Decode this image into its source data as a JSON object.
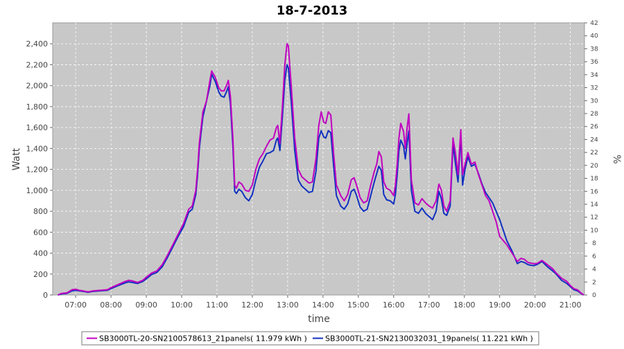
{
  "chart_data": {
    "type": "line",
    "title": "18-7-2013",
    "xlabel": "time",
    "ylabel": "Watt",
    "y2label": "%",
    "x_ticks": [
      "07:00",
      "08:00",
      "09:00",
      "10:00",
      "11:00",
      "12:00",
      "13:00",
      "14:00",
      "15:00",
      "16:00",
      "17:00",
      "18:00",
      "19:00",
      "20:00",
      "21:00"
    ],
    "xlim": [
      6.35,
      21.4
    ],
    "ylim": [
      0,
      2600
    ],
    "y_ticks": [
      0,
      200,
      400,
      600,
      800,
      1000,
      1200,
      1400,
      1600,
      1800,
      2000,
      2200,
      2400
    ],
    "y_tick_labels": [
      "0",
      "200",
      "400",
      "600",
      "800",
      "1,000",
      "1,200",
      "1,400",
      "1,600",
      "1,800",
      "2,000",
      "2,200",
      "2,400"
    ],
    "y2lim": [
      0,
      42
    ],
    "y2_ticks": [
      "0",
      "2",
      "4",
      "6",
      "8",
      "10",
      "12",
      "14",
      "16",
      "18",
      "20",
      "22",
      "24",
      "26",
      "28",
      "30",
      "32",
      "34",
      "36",
      "38",
      "40",
      "42"
    ],
    "grid": true,
    "background": "#c8c8c8",
    "legend_position": "bottom",
    "series": [
      {
        "name": "SB3000TL-20-SN2100578613_21panels( 11.979 kWh )",
        "color": "#c000c0",
        "points": [
          [
            6.5,
            0
          ],
          [
            6.6,
            15
          ],
          [
            6.75,
            20
          ],
          [
            6.9,
            50
          ],
          [
            7.0,
            55
          ],
          [
            7.1,
            45
          ],
          [
            7.2,
            40
          ],
          [
            7.35,
            30
          ],
          [
            7.5,
            40
          ],
          [
            7.7,
            45
          ],
          [
            7.9,
            50
          ],
          [
            8.0,
            70
          ],
          [
            8.2,
            100
          ],
          [
            8.4,
            130
          ],
          [
            8.5,
            140
          ],
          [
            8.6,
            135
          ],
          [
            8.75,
            120
          ],
          [
            8.9,
            140
          ],
          [
            9.0,
            170
          ],
          [
            9.15,
            210
          ],
          [
            9.3,
            230
          ],
          [
            9.45,
            290
          ],
          [
            9.6,
            380
          ],
          [
            9.75,
            480
          ],
          [
            9.9,
            580
          ],
          [
            10.05,
            680
          ],
          [
            10.2,
            820
          ],
          [
            10.3,
            850
          ],
          [
            10.4,
            1000
          ],
          [
            10.45,
            1200
          ],
          [
            10.5,
            1450
          ],
          [
            10.6,
            1750
          ],
          [
            10.7,
            1850
          ],
          [
            10.8,
            2050
          ],
          [
            10.85,
            2140
          ],
          [
            10.95,
            2080
          ],
          [
            11.05,
            1980
          ],
          [
            11.12,
            1950
          ],
          [
            11.2,
            1950
          ],
          [
            11.28,
            2010
          ],
          [
            11.32,
            2050
          ],
          [
            11.38,
            1900
          ],
          [
            11.45,
            1500
          ],
          [
            11.5,
            1050
          ],
          [
            11.55,
            1020
          ],
          [
            11.62,
            1080
          ],
          [
            11.7,
            1060
          ],
          [
            11.8,
            1000
          ],
          [
            11.9,
            990
          ],
          [
            12.0,
            1050
          ],
          [
            12.1,
            1200
          ],
          [
            12.2,
            1300
          ],
          [
            12.3,
            1350
          ],
          [
            12.4,
            1420
          ],
          [
            12.5,
            1480
          ],
          [
            12.6,
            1500
          ],
          [
            12.68,
            1600
          ],
          [
            12.72,
            1620
          ],
          [
            12.78,
            1450
          ],
          [
            12.85,
            1800
          ],
          [
            12.92,
            2200
          ],
          [
            12.98,
            2400
          ],
          [
            13.02,
            2380
          ],
          [
            13.1,
            2000
          ],
          [
            13.2,
            1500
          ],
          [
            13.3,
            1200
          ],
          [
            13.4,
            1130
          ],
          [
            13.5,
            1100
          ],
          [
            13.6,
            1070
          ],
          [
            13.7,
            1080
          ],
          [
            13.8,
            1300
          ],
          [
            13.88,
            1620
          ],
          [
            13.95,
            1750
          ],
          [
            14.02,
            1650
          ],
          [
            14.08,
            1640
          ],
          [
            14.15,
            1750
          ],
          [
            14.22,
            1720
          ],
          [
            14.3,
            1350
          ],
          [
            14.38,
            1050
          ],
          [
            14.5,
            950
          ],
          [
            14.6,
            900
          ],
          [
            14.7,
            960
          ],
          [
            14.8,
            1100
          ],
          [
            14.88,
            1120
          ],
          [
            14.95,
            1050
          ],
          [
            15.05,
            930
          ],
          [
            15.15,
            880
          ],
          [
            15.25,
            900
          ],
          [
            15.35,
            1050
          ],
          [
            15.45,
            1180
          ],
          [
            15.52,
            1250
          ],
          [
            15.58,
            1370
          ],
          [
            15.65,
            1320
          ],
          [
            15.72,
            1080
          ],
          [
            15.8,
            1020
          ],
          [
            15.9,
            1000
          ],
          [
            16.0,
            950
          ],
          [
            16.05,
            1050
          ],
          [
            16.1,
            1250
          ],
          [
            16.15,
            1500
          ],
          [
            16.2,
            1640
          ],
          [
            16.28,
            1560
          ],
          [
            16.33,
            1400
          ],
          [
            16.38,
            1600
          ],
          [
            16.43,
            1730
          ],
          [
            16.5,
            1100
          ],
          [
            16.6,
            880
          ],
          [
            16.7,
            860
          ],
          [
            16.8,
            920
          ],
          [
            16.9,
            880
          ],
          [
            17.0,
            850
          ],
          [
            17.1,
            830
          ],
          [
            17.2,
            900
          ],
          [
            17.28,
            1060
          ],
          [
            17.35,
            1000
          ],
          [
            17.42,
            850
          ],
          [
            17.5,
            800
          ],
          [
            17.6,
            900
          ],
          [
            17.68,
            1500
          ],
          [
            17.75,
            1350
          ],
          [
            17.82,
            1150
          ],
          [
            17.9,
            1580
          ],
          [
            17.95,
            1150
          ],
          [
            18.02,
            1250
          ],
          [
            18.1,
            1360
          ],
          [
            18.2,
            1250
          ],
          [
            18.3,
            1270
          ],
          [
            18.4,
            1150
          ],
          [
            18.5,
            1050
          ],
          [
            18.6,
            950
          ],
          [
            18.7,
            900
          ],
          [
            18.8,
            800
          ],
          [
            18.9,
            700
          ],
          [
            19.0,
            560
          ],
          [
            19.1,
            520
          ],
          [
            19.2,
            480
          ],
          [
            19.35,
            400
          ],
          [
            19.5,
            320
          ],
          [
            19.6,
            350
          ],
          [
            19.7,
            340
          ],
          [
            19.8,
            310
          ],
          [
            19.95,
            300
          ],
          [
            20.05,
            300
          ],
          [
            20.2,
            330
          ],
          [
            20.35,
            290
          ],
          [
            20.5,
            250
          ],
          [
            20.6,
            210
          ],
          [
            20.75,
            160
          ],
          [
            20.9,
            130
          ],
          [
            21.0,
            90
          ],
          [
            21.1,
            60
          ],
          [
            21.2,
            50
          ],
          [
            21.3,
            20
          ],
          [
            21.38,
            0
          ]
        ]
      },
      {
        "name": "SB3000TL-21-SN2130032031_19panels( 11.221 kWh )",
        "color": "#1030c0",
        "points": [
          [
            6.5,
            0
          ],
          [
            6.6,
            10
          ],
          [
            6.75,
            15
          ],
          [
            6.9,
            40
          ],
          [
            7.0,
            45
          ],
          [
            7.1,
            40
          ],
          [
            7.2,
            35
          ],
          [
            7.35,
            25
          ],
          [
            7.5,
            35
          ],
          [
            7.7,
            40
          ],
          [
            7.9,
            45
          ],
          [
            8.0,
            60
          ],
          [
            8.2,
            90
          ],
          [
            8.4,
            115
          ],
          [
            8.5,
            125
          ],
          [
            8.6,
            120
          ],
          [
            8.75,
            110
          ],
          [
            8.9,
            130
          ],
          [
            9.0,
            155
          ],
          [
            9.15,
            195
          ],
          [
            9.3,
            215
          ],
          [
            9.45,
            270
          ],
          [
            9.6,
            360
          ],
          [
            9.75,
            460
          ],
          [
            9.9,
            560
          ],
          [
            10.05,
            650
          ],
          [
            10.2,
            790
          ],
          [
            10.3,
            820
          ],
          [
            10.4,
            960
          ],
          [
            10.45,
            1150
          ],
          [
            10.5,
            1400
          ],
          [
            10.6,
            1700
          ],
          [
            10.7,
            1850
          ],
          [
            10.8,
            2000
          ],
          [
            10.85,
            2110
          ],
          [
            10.95,
            2040
          ],
          [
            11.05,
            1940
          ],
          [
            11.12,
            1900
          ],
          [
            11.2,
            1890
          ],
          [
            11.28,
            1950
          ],
          [
            11.32,
            1990
          ],
          [
            11.38,
            1830
          ],
          [
            11.45,
            1420
          ],
          [
            11.5,
            990
          ],
          [
            11.55,
            970
          ],
          [
            11.62,
            1010
          ],
          [
            11.7,
            990
          ],
          [
            11.8,
            930
          ],
          [
            11.9,
            900
          ],
          [
            12.0,
            960
          ],
          [
            12.1,
            1100
          ],
          [
            12.2,
            1220
          ],
          [
            12.3,
            1280
          ],
          [
            12.4,
            1350
          ],
          [
            12.5,
            1360
          ],
          [
            12.6,
            1380
          ],
          [
            12.68,
            1480
          ],
          [
            12.72,
            1500
          ],
          [
            12.78,
            1380
          ],
          [
            12.85,
            1700
          ],
          [
            12.92,
            2050
          ],
          [
            12.98,
            2200
          ],
          [
            13.02,
            2170
          ],
          [
            13.1,
            1850
          ],
          [
            13.2,
            1380
          ],
          [
            13.3,
            1100
          ],
          [
            13.4,
            1040
          ],
          [
            13.5,
            1010
          ],
          [
            13.6,
            980
          ],
          [
            13.7,
            990
          ],
          [
            13.8,
            1180
          ],
          [
            13.88,
            1500
          ],
          [
            13.95,
            1570
          ],
          [
            14.02,
            1510
          ],
          [
            14.08,
            1500
          ],
          [
            14.15,
            1570
          ],
          [
            14.22,
            1550
          ],
          [
            14.3,
            1230
          ],
          [
            14.38,
            950
          ],
          [
            14.5,
            850
          ],
          [
            14.6,
            820
          ],
          [
            14.7,
            870
          ],
          [
            14.8,
            990
          ],
          [
            14.88,
            1010
          ],
          [
            14.95,
            950
          ],
          [
            15.05,
            840
          ],
          [
            15.15,
            800
          ],
          [
            15.25,
            820
          ],
          [
            15.35,
            950
          ],
          [
            15.45,
            1080
          ],
          [
            15.52,
            1160
          ],
          [
            15.58,
            1230
          ],
          [
            15.65,
            1190
          ],
          [
            15.72,
            960
          ],
          [
            15.8,
            910
          ],
          [
            15.9,
            900
          ],
          [
            16.0,
            870
          ],
          [
            16.05,
            960
          ],
          [
            16.1,
            1150
          ],
          [
            16.15,
            1380
          ],
          [
            16.2,
            1480
          ],
          [
            16.28,
            1420
          ],
          [
            16.33,
            1300
          ],
          [
            16.38,
            1450
          ],
          [
            16.43,
            1570
          ],
          [
            16.5,
            1000
          ],
          [
            16.6,
            800
          ],
          [
            16.7,
            780
          ],
          [
            16.8,
            830
          ],
          [
            16.9,
            780
          ],
          [
            17.0,
            750
          ],
          [
            17.1,
            720
          ],
          [
            17.2,
            800
          ],
          [
            17.28,
            990
          ],
          [
            17.35,
            920
          ],
          [
            17.42,
            780
          ],
          [
            17.5,
            760
          ],
          [
            17.6,
            850
          ],
          [
            17.68,
            1440
          ],
          [
            17.75,
            1250
          ],
          [
            17.82,
            1080
          ],
          [
            17.9,
            1520
          ],
          [
            17.95,
            1050
          ],
          [
            18.02,
            1200
          ],
          [
            18.1,
            1320
          ],
          [
            18.2,
            1230
          ],
          [
            18.3,
            1250
          ],
          [
            18.4,
            1160
          ],
          [
            18.5,
            1060
          ],
          [
            18.6,
            980
          ],
          [
            18.7,
            930
          ],
          [
            18.8,
            880
          ],
          [
            18.9,
            800
          ],
          [
            19.0,
            720
          ],
          [
            19.1,
            620
          ],
          [
            19.2,
            520
          ],
          [
            19.35,
            420
          ],
          [
            19.5,
            300
          ],
          [
            19.6,
            320
          ],
          [
            19.7,
            310
          ],
          [
            19.8,
            290
          ],
          [
            19.95,
            280
          ],
          [
            20.05,
            290
          ],
          [
            20.2,
            320
          ],
          [
            20.35,
            270
          ],
          [
            20.5,
            230
          ],
          [
            20.6,
            200
          ],
          [
            20.75,
            140
          ],
          [
            20.9,
            110
          ],
          [
            21.0,
            80
          ],
          [
            21.1,
            50
          ],
          [
            21.2,
            40
          ],
          [
            21.3,
            15
          ],
          [
            21.38,
            0
          ]
        ]
      }
    ]
  }
}
